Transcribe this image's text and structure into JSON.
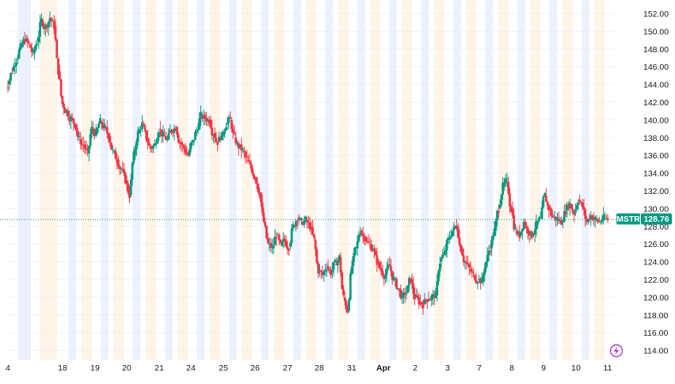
{
  "chart_data": {
    "type": "candlestick",
    "symbol": "MSTR",
    "last_price": 128.76,
    "last_price_label": "128.76",
    "colors": {
      "up": "#089981",
      "down": "#f23645",
      "tag": "#089981",
      "last_line": "#089981",
      "band_pre": "#fdebd6",
      "band_post": "#dde6fb",
      "lightning": "#a33fd6"
    },
    "ylim": [
      112,
      153
    ],
    "y_ticks": [
      152,
      150,
      148,
      146,
      144,
      142,
      140,
      138,
      136,
      134,
      132,
      130,
      128,
      126,
      124,
      122,
      120,
      118,
      116,
      114
    ],
    "y_tick_labels": [
      "152.00",
      "150.00",
      "148.00",
      "146.00",
      "144.00",
      "142.00",
      "140.00",
      "138.00",
      "136.00",
      "134.00",
      "132.00",
      "130.00",
      "128.00",
      "126.00",
      "124.00",
      "122.00",
      "120.00",
      "118.00",
      "116.00",
      "114.00"
    ],
    "x_labels": [
      {
        "text": "4",
        "day": 0,
        "bold": false
      },
      {
        "text": "18",
        "day": 1,
        "bold": false
      },
      {
        "text": "19",
        "day": 2,
        "bold": false
      },
      {
        "text": "20",
        "day": 3,
        "bold": false
      },
      {
        "text": "21",
        "day": 4,
        "bold": false
      },
      {
        "text": "24",
        "day": 5,
        "bold": false
      },
      {
        "text": "25",
        "day": 6,
        "bold": false
      },
      {
        "text": "26",
        "day": 7,
        "bold": false
      },
      {
        "text": "27",
        "day": 8,
        "bold": false
      },
      {
        "text": "28",
        "day": 9,
        "bold": false
      },
      {
        "text": "31",
        "day": 10,
        "bold": false
      },
      {
        "text": "Apr",
        "day": 11,
        "bold": true
      },
      {
        "text": "2",
        "day": 12,
        "bold": false
      },
      {
        "text": "3",
        "day": 13,
        "bold": false
      },
      {
        "text": "7",
        "day": 14,
        "bold": false
      },
      {
        "text": "8",
        "day": 15,
        "bold": false
      },
      {
        "text": "9",
        "day": 16,
        "bold": false
      },
      {
        "text": "10",
        "day": 17,
        "bold": false
      },
      {
        "text": "11",
        "day": 18,
        "bold": false
      }
    ],
    "closes": [
      [
        144.0,
        145.5,
        146.8,
        148.2,
        149.0,
        148.5,
        147.5,
        148.8,
        151.2,
        150.5,
        151.5,
        150.6
      ],
      [
        145.5,
        141.8,
        141.0,
        140.2,
        139.5,
        137.8,
        137.2,
        136.2,
        139.0,
        138.5,
        139.8,
        139.2
      ],
      [
        138.2,
        136.5,
        135.5,
        134.5,
        133.2,
        131.5,
        136.0,
        138.5,
        139.5,
        138.0,
        136.8,
        137.2
      ],
      [
        139.0,
        138.2,
        137.8,
        138.8,
        139.2,
        137.5,
        136.8,
        136.0,
        137.5,
        138.8,
        140.5,
        140.2
      ],
      [
        140.0,
        138.5,
        137.5,
        138.2,
        139.5,
        140.0,
        138.0,
        137.0,
        136.5,
        135.5,
        134.5,
        133.5
      ],
      [
        131.8,
        128.5,
        126.0,
        125.5,
        127.0,
        125.8,
        126.3,
        125.7,
        128.0,
        129.0,
        128.5,
        128.7
      ],
      [
        128.0,
        126.5,
        123.0,
        122.5,
        123.5,
        122.8,
        123.8,
        124.5,
        120.0,
        118.5,
        123.5,
        125.5
      ],
      [
        127.5,
        126.8,
        126.0,
        125.5,
        124.0,
        123.0,
        122.5,
        123.5,
        122.0,
        121.0,
        120.0,
        120.5
      ],
      [
        122.0,
        120.0,
        119.5,
        119.2,
        119.8,
        120.0,
        120.2,
        124.0,
        124.8,
        126.5,
        127.5,
        128.0
      ],
      [
        125.5,
        124.0,
        123.2,
        122.5,
        122.0,
        121.8,
        124.0,
        125.5,
        127.5,
        130.0,
        132.5,
        133.0
      ],
      [
        130.0,
        127.5,
        127.0,
        128.5,
        127.5,
        127.0,
        128.2,
        128.8,
        131.5,
        130.0,
        129.0,
        128.8
      ],
      [
        128.5,
        129.8,
        130.5,
        129.5,
        131.0,
        130.2,
        128.5,
        129.2,
        128.8,
        128.5,
        128.9,
        128.76
      ]
    ]
  },
  "symbol_tag": {
    "name": "MSTR",
    "price": "128.76"
  },
  "icons": {
    "lightning": "lightning-icon"
  }
}
